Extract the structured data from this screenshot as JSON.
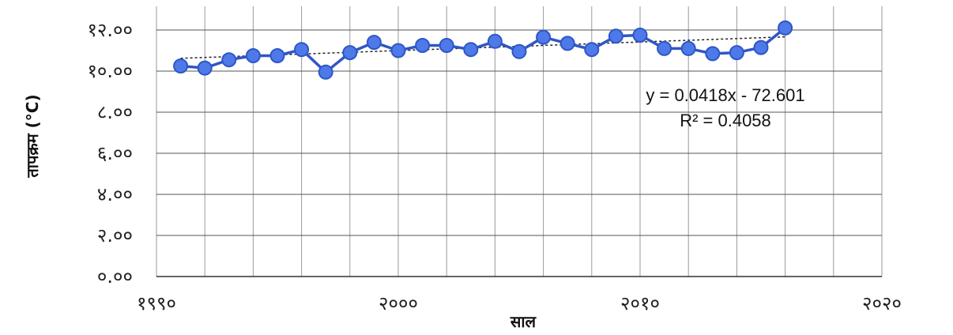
{
  "chart_data": {
    "type": "line",
    "title": "",
    "xlabel": "साल",
    "ylabel": "तापक्रम (°C)",
    "xlim": [
      1990,
      2020
    ],
    "ylim": [
      0,
      12
    ],
    "y_tick_values": [
      0,
      2,
      4,
      6,
      8,
      10,
      12
    ],
    "y_tick_labels": [
      "०.००",
      "२.००",
      "४.००",
      "६.००",
      "८.००",
      "१०.००",
      "१२.००"
    ],
    "x_tick_values": [
      1990,
      2000,
      2010,
      2020
    ],
    "x_tick_labels": [
      "१९९०",
      "२०००",
      "२०१०",
      "२०२०"
    ],
    "grid": true,
    "series": [
      {
        "x": [
          1991,
          1992,
          1993,
          1994,
          1995,
          1996,
          1997,
          1998,
          1999,
          2000,
          2001,
          2002,
          2003,
          2004,
          2005,
          2006,
          2007,
          2008,
          2009,
          2010,
          2011,
          2012,
          2013,
          2014,
          2015,
          2016
        ],
        "values": [
          10.25,
          10.15,
          10.55,
          10.75,
          10.75,
          11.05,
          9.95,
          10.9,
          11.4,
          11.0,
          11.25,
          11.25,
          11.05,
          11.45,
          10.95,
          11.65,
          11.35,
          11.05,
          11.7,
          11.75,
          11.1,
          11.1,
          10.85,
          10.9,
          11.15,
          12.1
        ],
        "color": "#2f56c6"
      }
    ],
    "trendline": {
      "slope": 0.0418,
      "intercept": -72.601,
      "equation": "y = 0.0418x - 72.601",
      "r_squared": "R² = 0.4058"
    }
  }
}
